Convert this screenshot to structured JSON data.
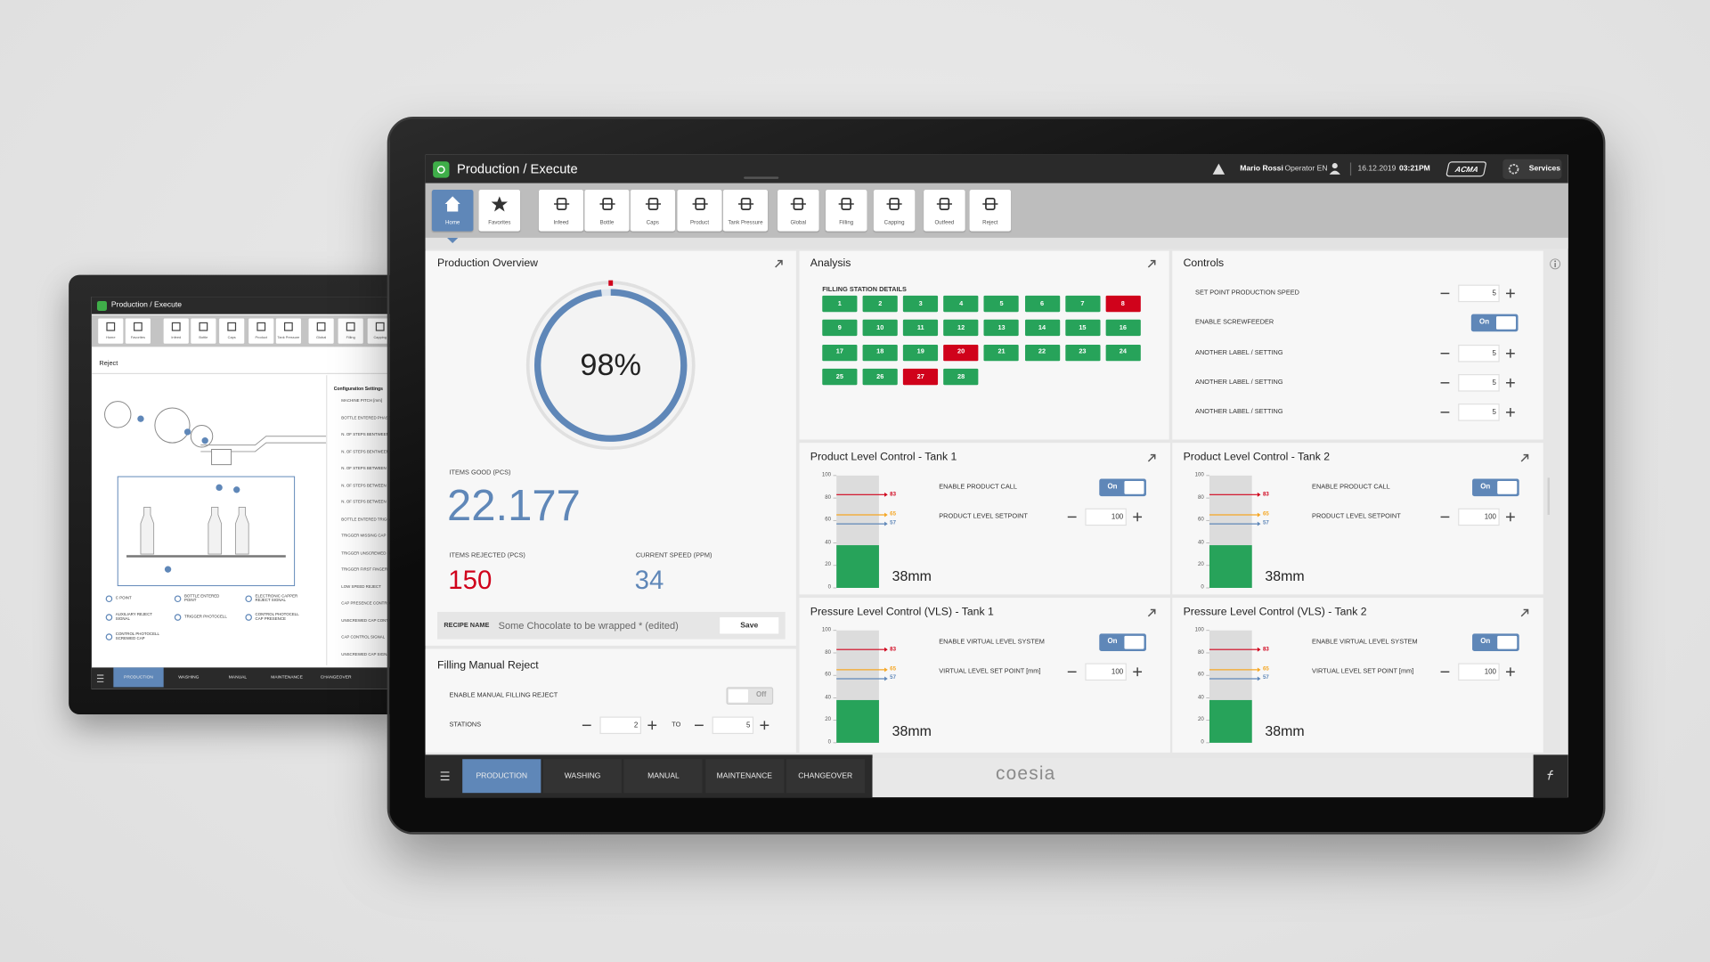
{
  "back_tablet": {
    "title": "Production / Execute",
    "toolbar": [
      "Home",
      "Favorites",
      "Infeed",
      "Bottle",
      "Caps",
      "Product",
      "Tank Pressure",
      "Global",
      "Filling",
      "Capping"
    ],
    "section": "Reject",
    "config_title": "Configuration Settings",
    "config_items": [
      "MACHINE PITCH [mm]",
      "BOTTLE ENTERED PHASE",
      "N. OF STEPS BENTWEEN",
      "N. OF STEPS BENTWEEN",
      "N. OF STEPS BETWEEN",
      "N. OF STEPS BETWEEN",
      "N. OF STEPS BETWEEN",
      "BOTTLE ENTERED TRIGGER",
      "TRIGGER MISSING CAP",
      "TRIGGER UNSCREWED CAP",
      "TRIGGER FIRST FINGER",
      "LOW SPEED REJECT",
      "CAP PRESENCE CONTROL",
      "UNSCREWED CAP CONTROL",
      "CAP CONTROL SIGNAL",
      "UNSCREWED CAP SIGNAL"
    ],
    "legend": [
      "C POINT",
      "BOTTLE ENTERED POINT",
      "ELECTRONIC CAPPER REJECT SIGNAL",
      "AUXILIARY REJECT SIGNAL",
      "TRIGGER PHOTOCELL",
      "CONTROL PHOTOCELL CAP PRESENCE",
      "CONTROL PHOTOCELL SCREWED CAP"
    ],
    "nav": [
      "PRODUCTION",
      "WASHING",
      "MANUAL",
      "MAINTENANCE",
      "CHANGEOVER"
    ]
  },
  "header": {
    "title": "Production / Execute",
    "user": "Mario Rossi",
    "role": "Operator EN",
    "date": "16.12.2019",
    "time": "03:21PM",
    "brand": "ACMA",
    "services": "Services"
  },
  "toolbar": [
    "Home",
    "Favorites",
    "Infeed",
    "Bottle",
    "Caps",
    "Product",
    "Tank Pressure",
    "Global",
    "Filling",
    "Capping",
    "Outfeed",
    "Reject"
  ],
  "overview": {
    "title": "Production Overview",
    "gauge": {
      "value": 98,
      "label": "98%",
      "max": 100
    },
    "items_good": {
      "label": "ITEMS GOOD (PCS)",
      "value": "22.177"
    },
    "items_rejected": {
      "label": "ITEMS REJECTED (PCS)",
      "value": 150
    },
    "current_speed": {
      "label": "CURRENT SPEED (PPM)",
      "value": 34
    },
    "recipe": {
      "label": "RECIPE NAME",
      "name": "Some Chocolate to be wrapped * (edited)",
      "button": "Save"
    }
  },
  "manual_reject": {
    "title": "Filling Manual Reject",
    "toggle_label": "ENABLE MANUAL FILLING REJECT",
    "toggle": {
      "label": "Off",
      "on": false
    },
    "stations_label": "STATIONS",
    "from": 2,
    "to_label": "TO",
    "to": 5
  },
  "analysis": {
    "title": "Analysis",
    "subtitle": "FILLING STATION DETAILS",
    "stations": [
      1,
      2,
      3,
      4,
      5,
      6,
      7,
      8,
      9,
      10,
      11,
      12,
      13,
      14,
      15,
      16,
      17,
      18,
      19,
      20,
      21,
      22,
      23,
      24,
      25,
      26,
      27,
      28
    ],
    "status": [
      "ok",
      "ok",
      "ok",
      "ok",
      "ok",
      "ok",
      "ok",
      "alarm",
      "ok",
      "ok",
      "ok",
      "ok",
      "ok",
      "ok",
      "ok",
      "ok",
      "ok",
      "ok",
      "ok",
      "alarm",
      "ok",
      "ok",
      "ok",
      "ok",
      "ok",
      "ok",
      "alarm",
      "ok"
    ],
    "colors": {
      "ok": "#27a35a",
      "alarm": "#d0021b"
    }
  },
  "controls": {
    "title": "Controls",
    "rows": [
      {
        "label": "SET POINT PRODUCTION SPEED",
        "value": 5
      },
      {
        "label": "ENABLE SCREWFEEDER",
        "toggle": {
          "label": "On",
          "on": true
        }
      },
      {
        "label": "ANOTHER LABEL / SETTING",
        "value": 5
      },
      {
        "label": "ANOTHER LABEL / SETTING",
        "value": 5
      },
      {
        "label": "ANOTHER LABEL / SETTING",
        "value": 5
      }
    ]
  },
  "marker_colors": [
    "#d0021b",
    "#f5a623",
    "#5f87b8"
  ],
  "tanks": [
    {
      "title": "Product Level Control - Tank 1",
      "toggle_label": "ENABLE PRODUCT CALL",
      "toggle": {
        "label": "On",
        "on": true
      },
      "setpoint_label": "PRODUCT LEVEL SETPOINT",
      "setpoint": 100,
      "level": 38,
      "level_label": "38mm",
      "markers": [
        83,
        65,
        57
      ],
      "ylim": [
        0,
        100
      ],
      "yticks": [
        0,
        20,
        40,
        60,
        80,
        100
      ]
    },
    {
      "title": "Product Level Control - Tank 2",
      "toggle_label": "ENABLE PRODUCT CALL",
      "toggle": {
        "label": "On",
        "on": true
      },
      "setpoint_label": "PRODUCT LEVEL SETPOINT",
      "setpoint": 100,
      "level": 38,
      "level_label": "38mm",
      "markers": [
        83,
        65,
        57
      ],
      "ylim": [
        0,
        100
      ],
      "yticks": [
        0,
        20,
        40,
        60,
        80,
        100
      ]
    },
    {
      "title": "Pressure Level Control (VLS) - Tank 1",
      "toggle_label": "ENABLE VIRTUAL LEVEL SYSTEM",
      "toggle": {
        "label": "On",
        "on": true
      },
      "setpoint_label": "VIRTUAL LEVEL SET POINT [mm]",
      "setpoint": 100,
      "level": 38,
      "level_label": "38mm",
      "markers": [
        83,
        65,
        57
      ],
      "ylim": [
        0,
        100
      ],
      "yticks": [
        0,
        20,
        40,
        60,
        80,
        100
      ]
    },
    {
      "title": "Pressure Level Control (VLS) - Tank 2",
      "toggle_label": "ENABLE VIRTUAL LEVEL SYSTEM",
      "toggle": {
        "label": "On",
        "on": true
      },
      "setpoint_label": "VIRTUAL LEVEL SET POINT [mm]",
      "setpoint": 100,
      "level": 38,
      "level_label": "38mm",
      "markers": [
        83,
        65,
        57
      ],
      "ylim": [
        0,
        100
      ],
      "yticks": [
        0,
        20,
        40,
        60,
        80,
        100
      ]
    }
  ],
  "nav": {
    "items": [
      "PRODUCTION",
      "WASHING",
      "MANUAL",
      "MAINTENANCE",
      "CHANGEOVER"
    ],
    "active": 0,
    "logo": "coesia"
  }
}
